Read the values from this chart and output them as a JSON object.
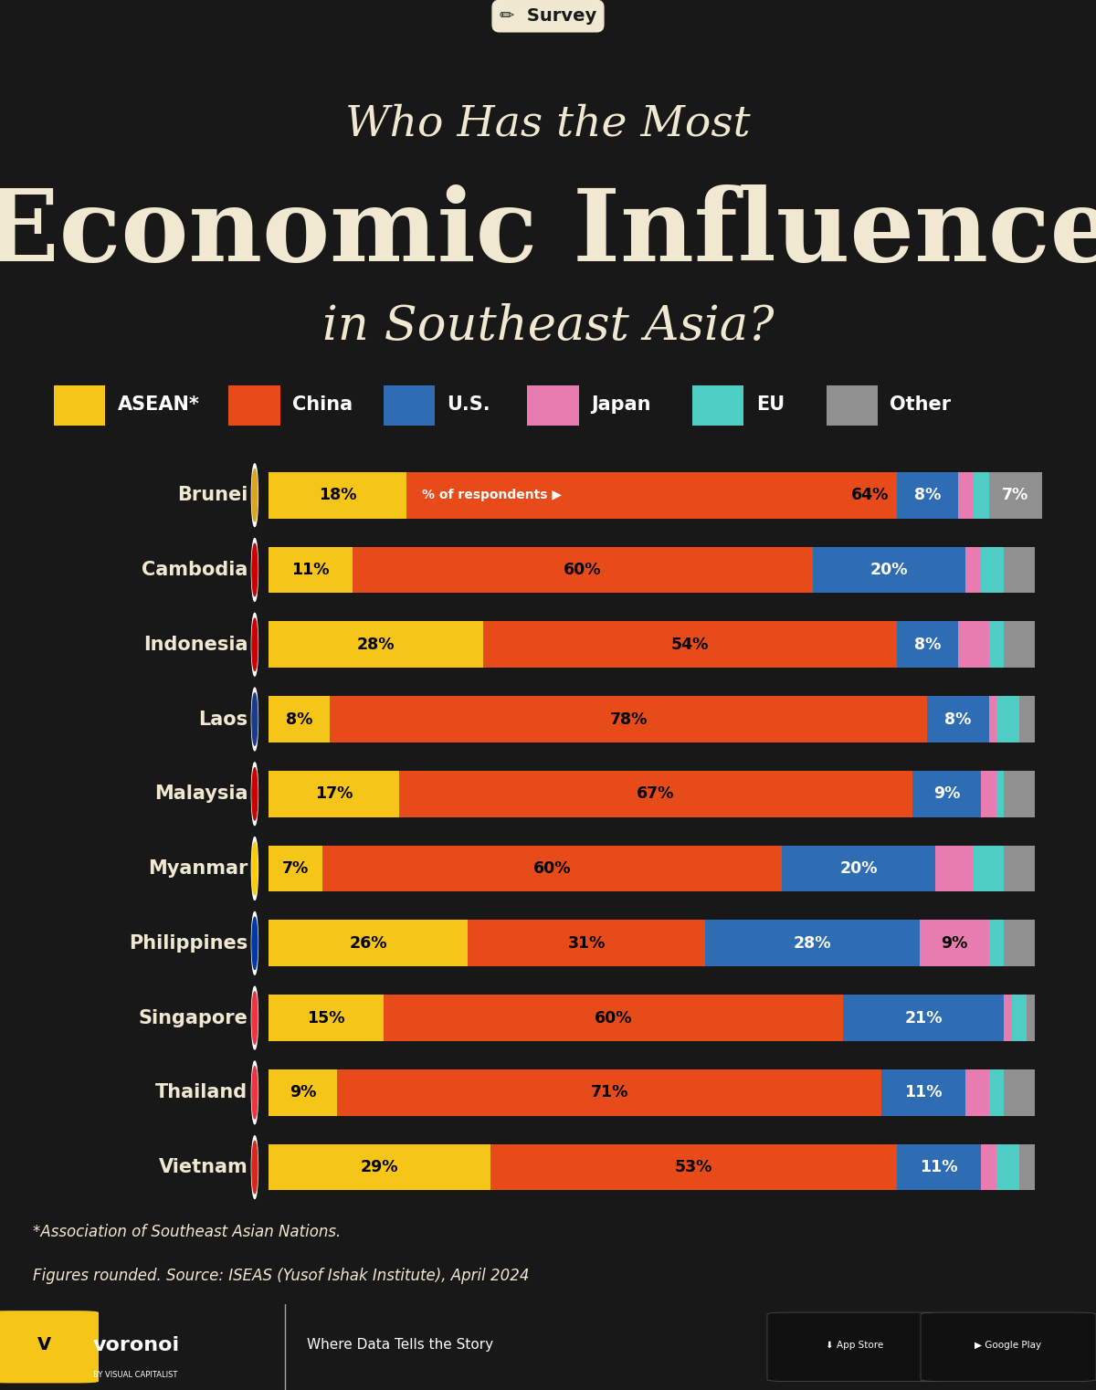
{
  "title_line1": "Who Has the Most",
  "title_line2": "Economic Influence",
  "title_line3": "in Southeast Asia?",
  "survey_label": "✏  Survey",
  "background_color": "#181818",
  "text_color": "#f0e8d0",
  "categories": [
    "Brunei",
    "Cambodia",
    "Indonesia",
    "Laos",
    "Malaysia",
    "Myanmar",
    "Philippines",
    "Singapore",
    "Thailand",
    "Vietnam"
  ],
  "segment_keys": [
    "ASEAN",
    "China",
    "US",
    "Japan",
    "EU",
    "Other"
  ],
  "data": {
    "Brunei": [
      18,
      64,
      8,
      2,
      2,
      7
    ],
    "Cambodia": [
      11,
      60,
      20,
      2,
      3,
      4
    ],
    "Indonesia": [
      28,
      54,
      8,
      4,
      2,
      4
    ],
    "Laos": [
      8,
      78,
      8,
      1,
      3,
      2
    ],
    "Malaysia": [
      17,
      67,
      9,
      2,
      1,
      4
    ],
    "Myanmar": [
      7,
      60,
      20,
      5,
      4,
      4
    ],
    "Philippines": [
      26,
      31,
      28,
      9,
      2,
      4
    ],
    "Singapore": [
      15,
      60,
      21,
      1,
      2,
      1
    ],
    "Thailand": [
      9,
      71,
      11,
      3,
      2,
      4
    ],
    "Vietnam": [
      29,
      53,
      11,
      2,
      3,
      2
    ]
  },
  "colors": {
    "ASEAN": "#F5C518",
    "China": "#E84B1A",
    "US": "#2E6DB4",
    "Japan": "#E87BB0",
    "EU": "#4ECDC4",
    "Other": "#909090"
  },
  "legend_labels": [
    "ASEAN*",
    "China",
    "U.S.",
    "Japan",
    "EU",
    "Other"
  ],
  "legend_keys": [
    "ASEAN",
    "China",
    "US",
    "Japan",
    "EU",
    "Other"
  ],
  "footer_text1": "*Association of Southeast Asian Nations.",
  "footer_text2": "Figures rounded. Source: ISEAS (Yusof Ishak Institute), April 2024",
  "teal_footer_color": "#2FA89A",
  "voronoi_teal": "#2FA89A",
  "label_min_pct": 6
}
